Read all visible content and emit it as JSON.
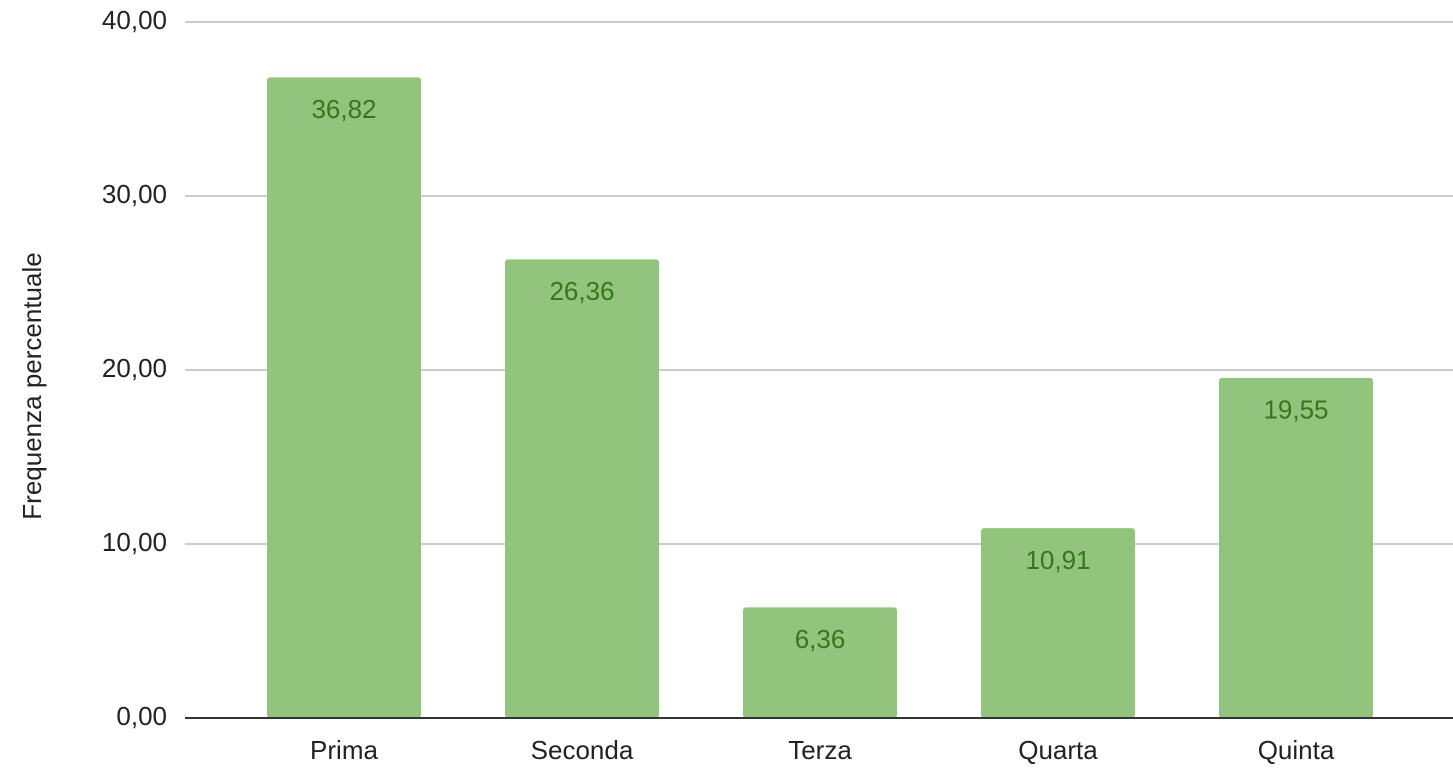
{
  "chart_data": {
    "type": "bar",
    "y_label": "Frequenza percentuale",
    "categories": [
      "Prima",
      "Seconda",
      "Terza",
      "Quarta",
      "Quinta"
    ],
    "values": [
      36.82,
      26.36,
      6.36,
      10.91,
      19.55
    ],
    "value_labels": [
      "36,82",
      "26,36",
      "6,36",
      "10,91",
      "19,55"
    ],
    "color": "#93c47d",
    "ylim": [
      0,
      40
    ],
    "yticks": [
      {
        "value": 0,
        "label": "0,00"
      },
      {
        "value": 10,
        "label": "10,00"
      },
      {
        "value": 20,
        "label": "20,00"
      },
      {
        "value": 30,
        "label": "30,00"
      },
      {
        "value": 40,
        "label": "40,00"
      }
    ],
    "grid": true
  }
}
